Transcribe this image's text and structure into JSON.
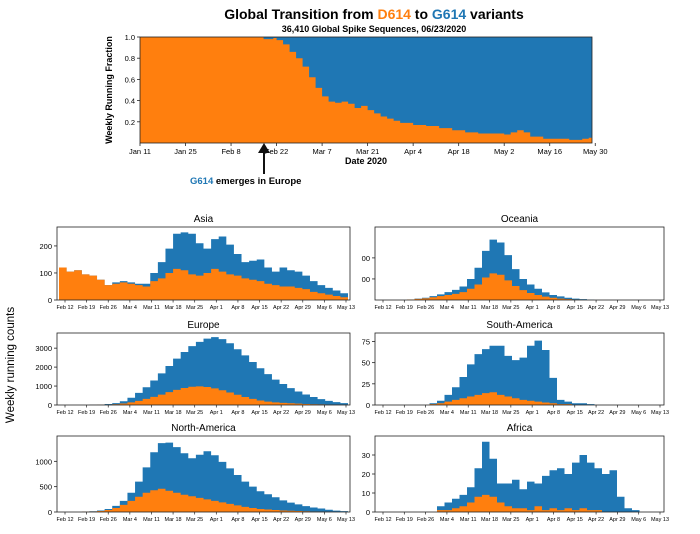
{
  "colors": {
    "d614": "#ff7f0e",
    "g614": "#1f77b4"
  },
  "title_parts": [
    "Global Transition from ",
    "D614",
    " to ",
    "G614",
    " variants"
  ],
  "subtitle": "36,410 Global Spike Sequences, 06/23/2020",
  "annotation": {
    "variant": "G614",
    "text": " emerges in Europe"
  },
  "shared_ylabel": "Weekly running counts",
  "chart_data": [
    {
      "type": "area",
      "title": "Global Transition from D614 to G614 variants",
      "xlabel": "Date 2020",
      "ylabel": "Weekly Running Fraction",
      "ylim": [
        0,
        1.0
      ],
      "xtick_labels": [
        "Jan 11",
        "Jan 25",
        "Feb 8",
        "Feb 22",
        "Mar 7",
        "Mar 21",
        "Apr 4",
        "Apr 18",
        "May 2",
        "May 16",
        "May 30"
      ],
      "ytick_labels": [
        "0.2",
        "0.4",
        "0.6",
        "0.8",
        "1.0"
      ],
      "series": [
        {
          "name": "D614",
          "color": "#ff7f0e",
          "points": [
            [
              0,
              1.0
            ],
            [
              14,
              1.0
            ],
            [
              28,
              1.0
            ],
            [
              37,
              1.0
            ],
            [
              38,
              0.98
            ],
            [
              41,
              0.99
            ],
            [
              42,
              0.97
            ],
            [
              44,
              0.93
            ],
            [
              46,
              0.86
            ],
            [
              48,
              0.8
            ],
            [
              50,
              0.72
            ],
            [
              52,
              0.62
            ],
            [
              54,
              0.52
            ],
            [
              56,
              0.44
            ],
            [
              58,
              0.39
            ],
            [
              60,
              0.38
            ],
            [
              62,
              0.39
            ],
            [
              64,
              0.37
            ],
            [
              66,
              0.33
            ],
            [
              68,
              0.35
            ],
            [
              70,
              0.31
            ],
            [
              72,
              0.28
            ],
            [
              74,
              0.25
            ],
            [
              76,
              0.23
            ],
            [
              78,
              0.21
            ],
            [
              80,
              0.19
            ],
            [
              84,
              0.17
            ],
            [
              88,
              0.16
            ],
            [
              92,
              0.14
            ],
            [
              96,
              0.12
            ],
            [
              100,
              0.1
            ],
            [
              104,
              0.09
            ],
            [
              108,
              0.09
            ],
            [
              112,
              0.08
            ],
            [
              114,
              0.1
            ],
            [
              116,
              0.12
            ],
            [
              118,
              0.1
            ],
            [
              120,
              0.06
            ],
            [
              124,
              0.04
            ],
            [
              128,
              0.04
            ],
            [
              132,
              0.03
            ],
            [
              136,
              0.04
            ],
            [
              138,
              0.05
            ],
            [
              139,
              0.06
            ]
          ]
        }
      ],
      "remainder_series": {
        "name": "G614",
        "color": "#1f77b4"
      }
    },
    {
      "type": "area",
      "title": "Asia",
      "ylim": [
        0,
        270
      ],
      "ytick_labels": [
        "0",
        "100",
        "200"
      ],
      "xtick_labels": [
        "Feb 12",
        "Feb 19",
        "Feb 26",
        "Mar 4",
        "Mar 11",
        "Mar 18",
        "Mar 25",
        "Apr 1",
        "Apr 8",
        "Apr 15",
        "Apr 22",
        "Apr 29",
        "May 6",
        "May 13"
      ],
      "series": [
        {
          "name": "D614",
          "color": "#ff7f0e",
          "values": [
            120,
            105,
            110,
            95,
            90,
            75,
            55,
            60,
            65,
            60,
            55,
            50,
            70,
            80,
            100,
            115,
            110,
            95,
            90,
            100,
            115,
            105,
            95,
            90,
            80,
            75,
            70,
            60,
            55,
            50,
            50,
            45,
            40,
            30,
            25,
            20,
            15,
            10
          ]
        },
        {
          "name": "G614",
          "color": "#1f77b4",
          "values": [
            0,
            0,
            0,
            0,
            0,
            0,
            0,
            5,
            5,
            5,
            5,
            10,
            30,
            60,
            90,
            130,
            140,
            150,
            120,
            90,
            110,
            130,
            110,
            80,
            60,
            70,
            80,
            60,
            50,
            70,
            60,
            60,
            50,
            40,
            30,
            25,
            20,
            15
          ]
        }
      ]
    },
    {
      "type": "area",
      "title": "Oceania",
      "ylim": [
        0,
        260
      ],
      "ytick_labels": [
        "00",
        "00"
      ],
      "xtick_labels": [
        "Feb 12",
        "Feb 19",
        "Feb 26",
        "Mar 4",
        "Mar 11",
        "Mar 18",
        "Mar 25",
        "Apr 1",
        "Apr 8",
        "Apr 15",
        "Apr 22",
        "Apr 29",
        "May 6",
        "May 13"
      ],
      "series": [
        {
          "name": "D614",
          "color": "#ff7f0e",
          "values": [
            0,
            0,
            0,
            0,
            2,
            4,
            6,
            10,
            14,
            18,
            22,
            28,
            40,
            55,
            80,
            95,
            90,
            70,
            50,
            35,
            25,
            18,
            12,
            8,
            5,
            3,
            2,
            1,
            0,
            0,
            0,
            0,
            0,
            0,
            0,
            0,
            0,
            0
          ]
        },
        {
          "name": "G614",
          "color": "#1f77b4",
          "values": [
            0,
            0,
            0,
            0,
            0,
            1,
            2,
            4,
            6,
            10,
            14,
            20,
            35,
            60,
            95,
            120,
            115,
            90,
            60,
            40,
            30,
            22,
            15,
            10,
            8,
            5,
            3,
            2,
            1,
            0,
            0,
            0,
            0,
            0,
            0,
            0,
            0,
            0
          ]
        }
      ]
    },
    {
      "type": "area",
      "title": "Europe",
      "ylim": [
        0,
        3800
      ],
      "ytick_labels": [
        "0",
        "1000",
        "2000",
        "3000"
      ],
      "xtick_labels": [
        "Feb 12",
        "Feb 19",
        "Feb 26",
        "Mar 4",
        "Mar 11",
        "Mar 18",
        "Mar 25",
        "Apr 1",
        "Apr 8",
        "Apr 15",
        "Apr 22",
        "Apr 29",
        "May 6",
        "May 13"
      ],
      "series": [
        {
          "name": "D614",
          "color": "#ff7f0e",
          "values": [
            0,
            0,
            0,
            0,
            5,
            10,
            20,
            40,
            80,
            140,
            220,
            320,
            430,
            550,
            680,
            800,
            900,
            960,
            980,
            950,
            880,
            780,
            660,
            540,
            420,
            320,
            240,
            180,
            140,
            110,
            90,
            70,
            55,
            40,
            30,
            20,
            15,
            10
          ]
        },
        {
          "name": "G614",
          "color": "#1f77b4",
          "values": [
            0,
            0,
            0,
            0,
            5,
            10,
            30,
            60,
            120,
            240,
            420,
            620,
            860,
            1120,
            1380,
            1650,
            1900,
            2150,
            2350,
            2550,
            2700,
            2700,
            2600,
            2400,
            2200,
            1950,
            1700,
            1450,
            1200,
            1000,
            800,
            640,
            500,
            380,
            280,
            200,
            140,
            90
          ]
        }
      ]
    },
    {
      "type": "area",
      "title": "South-America",
      "ylim": [
        0,
        85
      ],
      "ytick_labels": [
        "0",
        "25",
        "50",
        "75"
      ],
      "xtick_labels": [
        "Feb 12",
        "Feb 19",
        "Feb 26",
        "Mar 4",
        "Mar 11",
        "Mar 18",
        "Mar 25",
        "Apr 1",
        "Apr 8",
        "Apr 15",
        "Apr 22",
        "Apr 29",
        "May 6",
        "May 13"
      ],
      "series": [
        {
          "name": "D614",
          "color": "#ff7f0e",
          "values": [
            0,
            0,
            0,
            0,
            0,
            0,
            0,
            1,
            2,
            4,
            6,
            8,
            10,
            12,
            14,
            15,
            12,
            10,
            8,
            6,
            5,
            4,
            3,
            2,
            1,
            1,
            0,
            0,
            0,
            0,
            0,
            0,
            0,
            0,
            0,
            0,
            0,
            0
          ]
        },
        {
          "name": "G614",
          "color": "#1f77b4",
          "values": [
            0,
            0,
            0,
            0,
            0,
            0,
            0,
            1,
            3,
            8,
            15,
            25,
            38,
            48,
            52,
            55,
            58,
            48,
            45,
            50,
            65,
            72,
            62,
            30,
            5,
            3,
            2,
            2,
            1,
            0,
            0,
            0,
            0,
            0,
            0,
            0,
            0,
            0
          ]
        }
      ]
    },
    {
      "type": "area",
      "title": "North-America",
      "ylim": [
        0,
        1500
      ],
      "ytick_labels": [
        "0",
        "500",
        "1000"
      ],
      "xtick_labels": [
        "Feb 12",
        "Feb 19",
        "Feb 26",
        "Mar 4",
        "Mar 11",
        "Mar 18",
        "Mar 25",
        "Apr 1",
        "Apr 8",
        "Apr 15",
        "Apr 22",
        "Apr 29",
        "May 6",
        "May 13"
      ],
      "series": [
        {
          "name": "D614",
          "color": "#ff7f0e",
          "values": [
            0,
            0,
            0,
            5,
            10,
            20,
            40,
            80,
            140,
            220,
            300,
            380,
            430,
            460,
            420,
            380,
            340,
            310,
            280,
            250,
            220,
            190,
            160,
            130,
            100,
            80,
            60,
            50,
            40,
            30,
            25,
            20,
            15,
            10,
            8,
            5,
            3,
            2
          ]
        },
        {
          "name": "G614",
          "color": "#1f77b4",
          "values": [
            0,
            0,
            0,
            0,
            5,
            10,
            20,
            40,
            80,
            160,
            300,
            500,
            750,
            900,
            950,
            900,
            820,
            750,
            850,
            950,
            900,
            800,
            700,
            600,
            500,
            420,
            350,
            300,
            250,
            200,
            160,
            130,
            100,
            80,
            60,
            40,
            25,
            15
          ]
        }
      ]
    },
    {
      "type": "area",
      "title": "Africa",
      "ylim": [
        0,
        40
      ],
      "ytick_labels": [
        "0",
        "10",
        "20",
        "30"
      ],
      "xtick_labels": [
        "Feb 12",
        "Feb 19",
        "Feb 26",
        "Mar 4",
        "Mar 11",
        "Mar 18",
        "Mar 25",
        "Apr 1",
        "Apr 8",
        "Apr 15",
        "Apr 22",
        "Apr 29",
        "May 6",
        "May 13"
      ],
      "series": [
        {
          "name": "D614",
          "color": "#ff7f0e",
          "values": [
            0,
            0,
            0,
            0,
            0,
            0,
            0,
            0,
            1,
            1,
            2,
            3,
            5,
            8,
            9,
            8,
            5,
            3,
            2,
            2,
            1,
            3,
            1,
            2,
            1,
            2,
            1,
            2,
            1,
            1,
            0,
            0,
            0,
            0,
            0,
            0,
            0,
            0
          ]
        },
        {
          "name": "G614",
          "color": "#1f77b4",
          "values": [
            0,
            0,
            0,
            0,
            0,
            0,
            0,
            0,
            2,
            4,
            5,
            6,
            8,
            15,
            28,
            20,
            10,
            12,
            15,
            10,
            15,
            12,
            18,
            20,
            22,
            18,
            25,
            28,
            25,
            22,
            20,
            22,
            8,
            2,
            1,
            0,
            0,
            0
          ]
        }
      ]
    }
  ]
}
